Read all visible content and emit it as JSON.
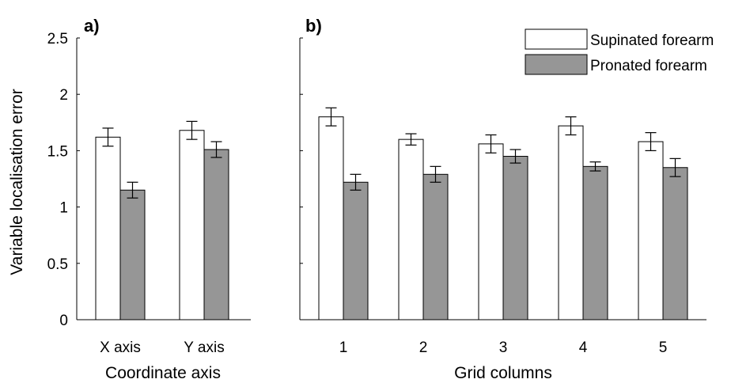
{
  "colors": {
    "supinated": "#ffffff",
    "pronated": "#969696",
    "stroke": "#000000"
  },
  "chart_data": [
    {
      "panel_label": "a)",
      "type": "bar",
      "xlabel": "Coordinate axis",
      "ylabel": "Variable localisation error",
      "ylim": [
        0,
        2.5
      ],
      "yticks": [
        "0",
        "0.5",
        "1",
        "1.5",
        "2",
        "2.5"
      ],
      "categories": [
        "X axis",
        "Y axis"
      ],
      "series": [
        {
          "name": "Supinated forearm",
          "values": [
            1.62,
            1.68
          ],
          "errors": [
            0.08,
            0.08
          ]
        },
        {
          "name": "Pronated forearm",
          "values": [
            1.15,
            1.51
          ],
          "errors": [
            0.07,
            0.07
          ]
        }
      ]
    },
    {
      "panel_label": "b)",
      "type": "bar",
      "xlabel": "Grid columns",
      "ylim": [
        0,
        2.5
      ],
      "categories": [
        "1",
        "2",
        "3",
        "4",
        "5"
      ],
      "legend_position": "top-right",
      "series": [
        {
          "name": "Supinated forearm",
          "values": [
            1.8,
            1.6,
            1.56,
            1.72,
            1.58
          ],
          "errors": [
            0.08,
            0.05,
            0.08,
            0.08,
            0.08
          ]
        },
        {
          "name": "Pronated forearm",
          "values": [
            1.22,
            1.29,
            1.45,
            1.36,
            1.35
          ],
          "errors": [
            0.07,
            0.07,
            0.06,
            0.04,
            0.08
          ]
        }
      ]
    }
  ]
}
